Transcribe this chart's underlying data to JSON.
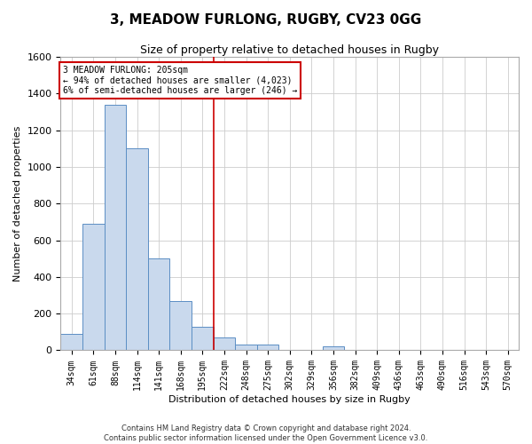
{
  "title": "3, MEADOW FURLONG, RUGBY, CV23 0GG",
  "subtitle": "Size of property relative to detached houses in Rugby",
  "xlabel": "Distribution of detached houses by size in Rugby",
  "ylabel": "Number of detached properties",
  "bin_labels": [
    "34sqm",
    "61sqm",
    "88sqm",
    "114sqm",
    "141sqm",
    "168sqm",
    "195sqm",
    "222sqm",
    "248sqm",
    "275sqm",
    "302sqm",
    "329sqm",
    "356sqm",
    "382sqm",
    "409sqm",
    "436sqm",
    "463sqm",
    "490sqm",
    "516sqm",
    "543sqm",
    "570sqm"
  ],
  "bar_heights": [
    90,
    690,
    1340,
    1100,
    500,
    270,
    130,
    70,
    30,
    30,
    0,
    0,
    20,
    0,
    0,
    0,
    0,
    0,
    0,
    0,
    0
  ],
  "bar_color": "#c9d9ed",
  "bar_edge_color": "#5b8ec4",
  "grid_color": "#cccccc",
  "red_line_bin": 6,
  "annotation_title": "3 MEADOW FURLONG: 205sqm",
  "annotation_line1": "← 94% of detached houses are smaller (4,023)",
  "annotation_line2": "6% of semi-detached houses are larger (246) →",
  "annotation_box_color": "#ffffff",
  "annotation_edge_color": "#cc0000",
  "footer_line1": "Contains HM Land Registry data © Crown copyright and database right 2024.",
  "footer_line2": "Contains public sector information licensed under the Open Government Licence v3.0.",
  "ylim": [
    0,
    1600
  ],
  "yticks": [
    0,
    200,
    400,
    600,
    800,
    1000,
    1200,
    1400,
    1600
  ],
  "title_fontsize": 11,
  "subtitle_fontsize": 9,
  "ylabel_fontsize": 8,
  "xlabel_fontsize": 8,
  "ytick_fontsize": 8,
  "xtick_fontsize": 7,
  "annotation_fontsize": 7,
  "footer_fontsize": 6
}
